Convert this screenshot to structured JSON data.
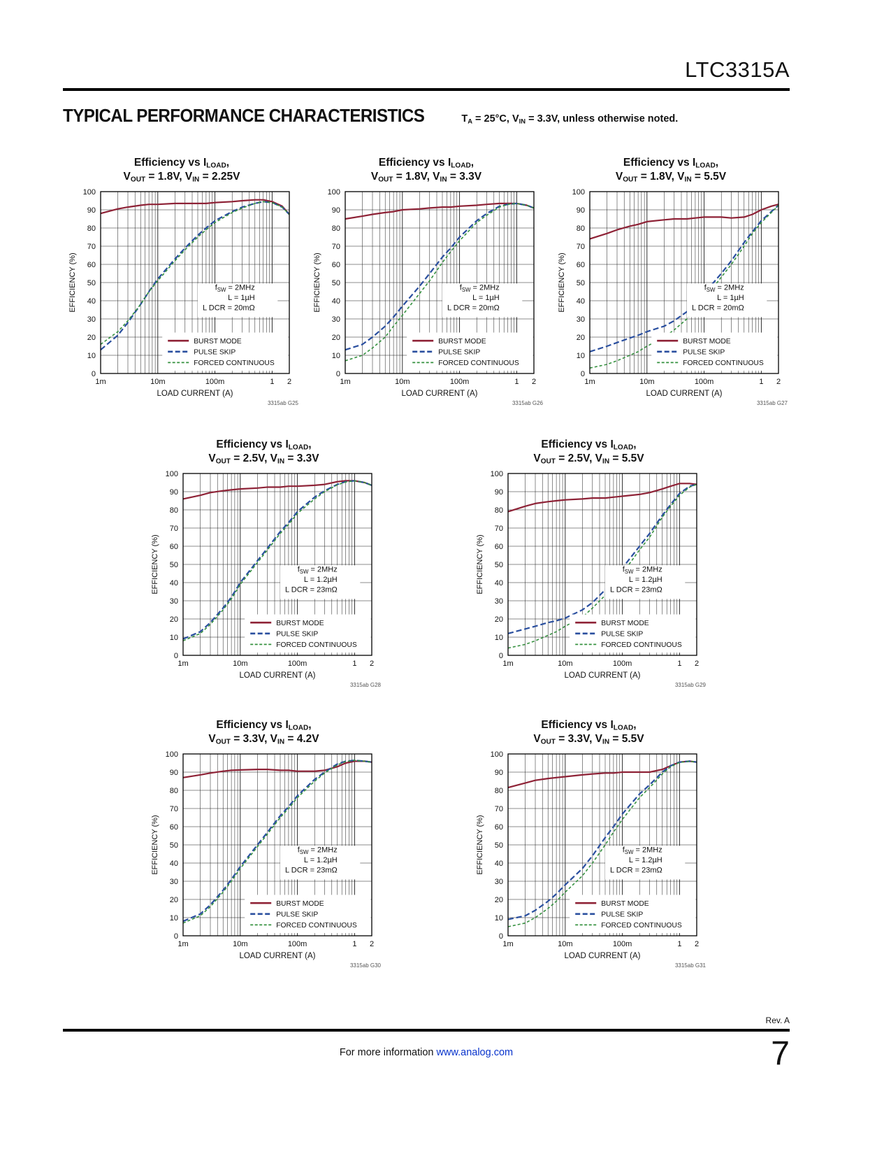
{
  "page": {
    "part_number": "LTC3315A",
    "section_title": "TYPICAL PERFORMANCE CHARACTERISTICS",
    "conditions": "T_{A} = 25°C, V_{IN} = 3.3V, unless otherwise noted.",
    "rev": "Rev. A",
    "footer_text": "For more information ",
    "footer_link": "www.analog.com",
    "page_number": "7"
  },
  "colors": {
    "burst": "#8e2236",
    "pulse": "#2a4f9f",
    "forced": "#35913f",
    "grid": "#1a1a1a",
    "link": "#0733cc"
  },
  "chart_data": {
    "type": "line",
    "axes": {
      "xlabel": "LOAD CURRENT (A)",
      "ylabel": "EFFICIENCY (%)",
      "xscale": "log",
      "xlim": [
        0.001,
        2
      ],
      "ylim": [
        0,
        100
      ],
      "xticks": [
        {
          "v": 0.001,
          "label": "1m"
        },
        {
          "v": 0.01,
          "label": "10m"
        },
        {
          "v": 0.1,
          "label": "100m"
        },
        {
          "v": 1,
          "label": "1"
        },
        {
          "v": 2,
          "label": "2"
        }
      ],
      "yticks": [
        0,
        10,
        20,
        30,
        40,
        50,
        60,
        70,
        80,
        90,
        100
      ]
    },
    "legend": [
      "BURST MODE",
      "PULSE SKIP",
      "FORCED CONTINUOUS"
    ],
    "charts": [
      {
        "id": "3315ab G25",
        "title1": "Efficiency vs I_{LOAD},",
        "title2": "V_{OUT} = 1.8V, V_{IN} = 2.25V",
        "annotations": [
          "f_{SW} = 2MHz",
          "L = 1µH",
          "L DCR = 20mΩ"
        ],
        "x": [
          0.001,
          0.002,
          0.003,
          0.005,
          0.007,
          0.01,
          0.02,
          0.03,
          0.05,
          0.07,
          0.1,
          0.2,
          0.3,
          0.5,
          0.7,
          1,
          1.5,
          2
        ],
        "series": [
          {
            "name": "BURST MODE",
            "key": "burst",
            "style": "solid",
            "values": [
              88,
              90.5,
              91.5,
              92.5,
              93,
              93,
              93.5,
              93.5,
              93.5,
              93.5,
              94,
              94.5,
              95,
              95.5,
              95.5,
              94.5,
              92,
              87.5
            ]
          },
          {
            "name": "PULSE SKIP",
            "key": "pulse",
            "style": "dashed",
            "values": [
              13,
              21,
              28,
              38,
              45,
              52,
              63,
              69,
              76,
              80,
              84,
              89,
              91.5,
              93.5,
              94.5,
              94,
              91.5,
              87.5
            ]
          },
          {
            "name": "FORCED CONTINUOUS",
            "key": "forced",
            "style": "dashed-short",
            "values": [
              16,
              23,
              29,
              38,
              45,
              51,
              62,
              68,
              75,
              79,
              83,
              88.5,
              91,
              93.5,
              94.5,
              94,
              91.5,
              87.5
            ]
          }
        ]
      },
      {
        "id": "3315ab G26",
        "title1": "Efficiency vs I_{LOAD},",
        "title2": "V_{OUT} = 1.8V, V_{IN} = 3.3V",
        "annotations": [
          "f_{SW} = 2MHz",
          "L = 1µH",
          "L DCR = 20mΩ"
        ],
        "x": [
          0.001,
          0.002,
          0.003,
          0.005,
          0.007,
          0.01,
          0.02,
          0.03,
          0.05,
          0.07,
          0.1,
          0.2,
          0.3,
          0.5,
          0.7,
          1,
          1.5,
          2
        ],
        "series": [
          {
            "name": "BURST MODE",
            "key": "burst",
            "style": "solid",
            "values": [
              85,
              86.5,
              87.5,
              88.5,
              89,
              90,
              90.5,
              91,
              91.5,
              91.5,
              92,
              92.5,
              93,
              93.5,
              93.5,
              93.5,
              92.5,
              91
            ]
          },
          {
            "name": "PULSE SKIP",
            "key": "pulse",
            "style": "dashed",
            "values": [
              13,
              16,
              20,
              26,
              31,
              37,
              48,
              55,
              64,
              69,
              75,
              84,
              88,
              92,
              93,
              93.5,
              92.5,
              91
            ]
          },
          {
            "name": "FORCED CONTINUOUS",
            "key": "forced",
            "style": "dashed-short",
            "values": [
              7,
              10,
              14,
              20,
              26,
              32,
              44,
              51,
              61,
              67,
              73,
              83,
              87,
              91.5,
              93,
              93.5,
              92.5,
              91
            ]
          }
        ]
      },
      {
        "id": "3315ab G27",
        "title1": "Efficiency vs I_{LOAD},",
        "title2": "V_{OUT} = 1.8V, V_{IN} = 5.5V",
        "annotations": [
          "f_{SW} = 2MHz",
          "L = 1µH",
          "L DCR = 20mΩ"
        ],
        "x": [
          0.001,
          0.002,
          0.003,
          0.005,
          0.007,
          0.01,
          0.02,
          0.03,
          0.05,
          0.07,
          0.1,
          0.2,
          0.3,
          0.5,
          0.7,
          1,
          1.5,
          2
        ],
        "series": [
          {
            "name": "BURST MODE",
            "key": "burst",
            "style": "solid",
            "values": [
              74,
              77,
              79,
              81,
              82,
              83.5,
              84.5,
              85,
              85,
              85.5,
              86,
              86,
              85.5,
              86,
              87.5,
              90,
              92,
              93
            ]
          },
          {
            "name": "PULSE SKIP",
            "key": "pulse",
            "style": "dashed",
            "values": [
              12,
              15,
              17,
              19.5,
              21,
              23,
              26,
              29,
              34,
              38,
              44,
              55,
              62,
              72,
              78,
              84,
              89,
              92.5
            ]
          },
          {
            "name": "FORCED CONTINUOUS",
            "key": "forced",
            "style": "dashed-short",
            "values": [
              3,
              5,
              7,
              10,
              12,
              15,
              20,
              24,
              30,
              35,
              41,
              53,
              60,
              70,
              77,
              83,
              88.5,
              92.5
            ]
          }
        ]
      },
      {
        "id": "3315ab G28",
        "title1": "Efficiency vs I_{LOAD},",
        "title2": "V_{OUT} = 2.5V, V_{IN} = 3.3V",
        "annotations": [
          "f_{SW} = 2MHz",
          "L = 1.2µH",
          "L DCR = 23mΩ"
        ],
        "x": [
          0.001,
          0.002,
          0.003,
          0.005,
          0.007,
          0.01,
          0.02,
          0.03,
          0.05,
          0.07,
          0.1,
          0.2,
          0.3,
          0.5,
          0.7,
          1,
          1.5,
          2
        ],
        "series": [
          {
            "name": "BURST MODE",
            "key": "burst",
            "style": "solid",
            "values": [
              86,
              88,
              89.5,
              90.5,
              91,
              91.5,
              92,
              92.5,
              92.5,
              93,
              93,
              93.5,
              94,
              95.5,
              96,
              96,
              95,
              93.5
            ]
          },
          {
            "name": "PULSE SKIP",
            "key": "pulse",
            "style": "dashed",
            "values": [
              9,
              13,
              18,
              26,
              32,
              40,
              52,
              59,
              68,
              73,
              79,
              87,
              90.5,
              94,
              95.5,
              96,
              95,
              93.5
            ]
          },
          {
            "name": "FORCED CONTINUOUS",
            "key": "forced",
            "style": "dashed-short",
            "values": [
              8,
              12,
              17,
              25,
              31,
              39,
              51,
              58,
              67,
              72,
              78,
              86,
              90,
              93.8,
              95.3,
              96,
              95,
              93.5
            ]
          }
        ]
      },
      {
        "id": "3315ab G29",
        "title1": "Efficiency vs I_{LOAD},",
        "title2": "V_{OUT} = 2.5V, V_{IN} = 5.5V",
        "annotations": [
          "f_{SW} = 2MHz",
          "L = 1.2µH",
          "L DCR = 23mΩ"
        ],
        "x": [
          0.001,
          0.002,
          0.003,
          0.005,
          0.007,
          0.01,
          0.02,
          0.03,
          0.05,
          0.07,
          0.1,
          0.2,
          0.3,
          0.5,
          0.7,
          1,
          1.5,
          2
        ],
        "series": [
          {
            "name": "BURST MODE",
            "key": "burst",
            "style": "solid",
            "values": [
              79,
              82,
              83.5,
              84.5,
              85,
              85.5,
              86,
              86.5,
              86.5,
              87,
              87.5,
              88.5,
              89.5,
              91.5,
              93,
              94.5,
              94.5,
              94
            ]
          },
          {
            "name": "PULSE SKIP",
            "key": "pulse",
            "style": "dashed",
            "values": [
              12,
              14.5,
              16,
              18,
              19,
              20.5,
              25,
              29,
              36,
              41,
              48,
              60,
              67,
              77,
              83,
              89,
              93,
              94
            ]
          },
          {
            "name": "FORCED CONTINUOUS",
            "key": "forced",
            "style": "dashed-short",
            "values": [
              4,
              6,
              8,
              11,
              13,
              16,
              21,
              26,
              33,
              38,
              45,
              58,
              65,
              76,
              82,
              88,
              92.5,
              94
            ]
          }
        ]
      },
      {
        "id": "3315ab G30",
        "title1": "Efficiency vs I_{LOAD},",
        "title2": "V_{OUT} = 3.3V, V_{IN} = 4.2V",
        "annotations": [
          "f_{SW} = 2MHz",
          "L = 1.2µH",
          "L DCR = 23mΩ"
        ],
        "x": [
          0.001,
          0.002,
          0.003,
          0.005,
          0.007,
          0.01,
          0.02,
          0.03,
          0.05,
          0.07,
          0.1,
          0.2,
          0.3,
          0.5,
          0.7,
          1,
          1.5,
          2
        ],
        "series": [
          {
            "name": "BURST MODE",
            "key": "burst",
            "style": "solid",
            "values": [
              87,
              88.5,
              89.5,
              90.5,
              91,
              91.2,
              91.5,
              91.5,
              91,
              91,
              90.5,
              90.5,
              91,
              93,
              95,
              96,
              96,
              95.5
            ]
          },
          {
            "name": "PULSE SKIP",
            "key": "pulse",
            "style": "dashed",
            "values": [
              8,
              12,
              17,
              25,
              31,
              38,
              50,
              57,
              66,
              71,
              77,
              86,
              90,
              94.5,
              96,
              96.5,
              96,
              95.5
            ]
          },
          {
            "name": "FORCED CONTINUOUS",
            "key": "forced",
            "style": "dashed-short",
            "values": [
              7,
              11,
              16,
              24,
              30,
              37,
              49,
              56,
              65,
              70,
              76,
              85,
              89.5,
              94,
              95.8,
              96.5,
              96,
              95.5
            ]
          }
        ]
      },
      {
        "id": "3315ab G31",
        "title1": "Efficiency vs I_{LOAD},",
        "title2": "V_{OUT} = 3.3V, V_{IN} = 5.5V",
        "annotations": [
          "f_{SW} = 2MHz",
          "L = 1.2µH",
          "L DCR = 23mΩ"
        ],
        "x": [
          0.001,
          0.002,
          0.003,
          0.005,
          0.007,
          0.01,
          0.02,
          0.03,
          0.05,
          0.07,
          0.1,
          0.2,
          0.3,
          0.5,
          0.7,
          1,
          1.5,
          2
        ],
        "series": [
          {
            "name": "BURST MODE",
            "key": "burst",
            "style": "solid",
            "values": [
              81.5,
              84,
              85.5,
              86.5,
              87,
              87.5,
              88.5,
              89,
              89.5,
              89.5,
              90,
              90,
              90,
              91.5,
              93.5,
              95.5,
              96,
              95.5
            ]
          },
          {
            "name": "PULSE SKIP",
            "key": "pulse",
            "style": "dashed",
            "values": [
              9,
              11,
              14,
              19,
              23,
              28,
              37,
              44,
              54,
              60,
              67,
              78,
              83,
              90,
              93.5,
              95.5,
              96,
              95.5
            ]
          },
          {
            "name": "FORCED CONTINUOUS",
            "key": "forced",
            "style": "dashed-short",
            "values": [
              5,
              7,
              10,
              15,
              19,
              24,
              33,
              40,
              50,
              57,
              64,
              76,
              81.5,
              89,
              93,
              95.3,
              96,
              95.5
            ]
          }
        ]
      }
    ]
  }
}
